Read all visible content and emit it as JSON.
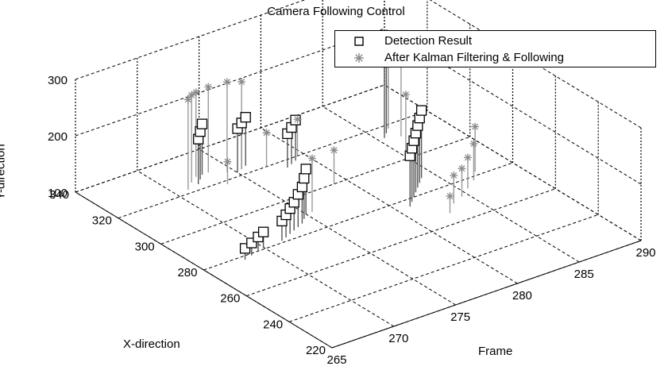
{
  "chart_data": {
    "type": "scatter3d",
    "title": "Camera Following Control",
    "xlabel": "X-direction",
    "ylabel": "Y-direction",
    "zlabel": "Frame",
    "frame_ticks": [
      "265",
      "270",
      "275",
      "280",
      "285",
      "290"
    ],
    "x_ticks": [
      "220",
      "240",
      "260",
      "280",
      "300",
      "320",
      "340"
    ],
    "y_ticks": [
      "100",
      "200",
      "300"
    ],
    "frame_range": [
      265,
      290
    ],
    "x_range": [
      220,
      340
    ],
    "y_range": [
      100,
      300
    ],
    "grid": true,
    "legend_position": "top-right",
    "colors": {
      "detection": "#000000",
      "kalman": "#8a8a8a",
      "grid": "#000000"
    },
    "series": [
      {
        "name": "Detection Result",
        "marker": "square",
        "points": [
          {
            "frame": 268.0,
            "x": 278,
            "y": 120
          },
          {
            "frame": 268.7,
            "x": 279,
            "y": 122
          },
          {
            "frame": 269.4,
            "x": 280,
            "y": 125
          },
          {
            "frame": 270.0,
            "x": 281,
            "y": 127
          },
          {
            "frame": 271.5,
            "x": 281,
            "y": 135
          },
          {
            "frame": 272.0,
            "x": 282,
            "y": 140
          },
          {
            "frame": 272.5,
            "x": 283,
            "y": 145
          },
          {
            "frame": 273.0,
            "x": 284,
            "y": 150
          },
          {
            "frame": 273.5,
            "x": 285,
            "y": 158
          },
          {
            "frame": 274.0,
            "x": 286,
            "y": 165
          },
          {
            "frame": 274.5,
            "x": 288,
            "y": 172
          },
          {
            "frame": 275.0,
            "x": 290,
            "y": 180
          },
          {
            "frame": 272.0,
            "x": 323,
            "y": 180
          },
          {
            "frame": 272.5,
            "x": 325,
            "y": 185
          },
          {
            "frame": 273.0,
            "x": 327,
            "y": 190
          },
          {
            "frame": 275.0,
            "x": 322,
            "y": 178
          },
          {
            "frame": 275.5,
            "x": 323,
            "y": 182
          },
          {
            "frame": 276.0,
            "x": 324,
            "y": 186
          },
          {
            "frame": 278.0,
            "x": 316,
            "y": 160
          },
          {
            "frame": 278.5,
            "x": 317,
            "y": 165
          },
          {
            "frame": 279.0,
            "x": 318,
            "y": 172
          },
          {
            "frame": 281.0,
            "x": 276,
            "y": 190
          },
          {
            "frame": 281.5,
            "x": 278,
            "y": 195
          },
          {
            "frame": 282.0,
            "x": 280,
            "y": 200
          },
          {
            "frame": 282.5,
            "x": 282,
            "y": 205
          },
          {
            "frame": 283.0,
            "x": 284,
            "y": 210
          },
          {
            "frame": 283.5,
            "x": 286,
            "y": 215
          },
          {
            "frame": 284.0,
            "x": 288,
            "y": 220
          },
          {
            "frame": 285.5,
            "x": 314,
            "y": 250
          },
          {
            "frame": 286.0,
            "x": 316,
            "y": 255
          },
          {
            "frame": 286.5,
            "x": 318,
            "y": 260
          }
        ]
      },
      {
        "name": "After Kalman Filtering & Following",
        "marker": "asterisk",
        "points": [
          {
            "frame": 271.0,
            "x": 322,
            "y": 260
          },
          {
            "frame": 271.8,
            "x": 325,
            "y": 255
          },
          {
            "frame": 272.5,
            "x": 327,
            "y": 250
          },
          {
            "frame": 273.5,
            "x": 327,
            "y": 252
          },
          {
            "frame": 274.5,
            "x": 324,
            "y": 260
          },
          {
            "frame": 275.5,
            "x": 323,
            "y": 255
          },
          {
            "frame": 273.5,
            "x": 318,
            "y": 140
          },
          {
            "frame": 277.0,
            "x": 320,
            "y": 160
          },
          {
            "frame": 279.5,
            "x": 320,
            "y": 165
          },
          {
            "frame": 275.5,
            "x": 290,
            "y": 195
          },
          {
            "frame": 279.0,
            "x": 300,
            "y": 160
          },
          {
            "frame": 282.5,
            "x": 266,
            "y": 130
          },
          {
            "frame": 283.5,
            "x": 270,
            "y": 150
          },
          {
            "frame": 284.5,
            "x": 272,
            "y": 150
          },
          {
            "frame": 285.5,
            "x": 275,
            "y": 155
          },
          {
            "frame": 286.5,
            "x": 278,
            "y": 165
          },
          {
            "frame": 287.3,
            "x": 282,
            "y": 180
          },
          {
            "frame": 285.5,
            "x": 304,
            "y": 200
          },
          {
            "frame": 286.5,
            "x": 318,
            "y": 225
          },
          {
            "frame": 286.5,
            "x": 312,
            "y": 258
          }
        ]
      }
    ]
  }
}
